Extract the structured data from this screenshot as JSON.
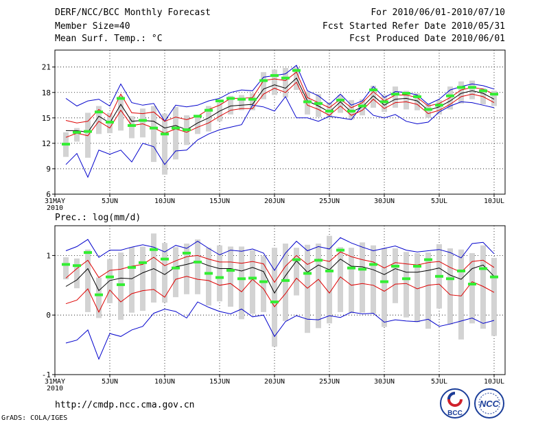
{
  "header": {
    "title": "DERF/NCC/BCC Monthly Forecast",
    "member_size": "Member Size=40",
    "variable": "Mean Surf. Temp.: °C",
    "period": "For 2010/06/01-2010/07/10",
    "started": "Fcst Started Refer Date 2010/05/31",
    "produced": "Fcst Produced Date 2010/06/01"
  },
  "footer": {
    "url": "http://cmdp.ncc.cma.gov.cn",
    "grads": "GrADS: COLA/IGES",
    "logo_bcc": "BCC",
    "logo_ncc": "NCC"
  },
  "colors": {
    "max_min": "#0000cc",
    "band": "#dd0000",
    "mean": "#000000",
    "obs": "#33ee33",
    "box": "#d3d3d3"
  },
  "x_ticks": [
    {
      "day": 0,
      "label": "31MAY",
      "sub": "2010"
    },
    {
      "day": 5,
      "label": "5JUN"
    },
    {
      "day": 10,
      "label": "10JUN"
    },
    {
      "day": 15,
      "label": "15JUN"
    },
    {
      "day": 20,
      "label": "20JUN"
    },
    {
      "day": 25,
      "label": "25JUN"
    },
    {
      "day": 30,
      "label": "30JUN"
    },
    {
      "day": 35,
      "label": "5JUL"
    },
    {
      "day": 40,
      "label": "10JUL"
    }
  ],
  "chart_data": [
    {
      "type": "line",
      "title": "Mean Surf. Temp.: °C",
      "x": [
        1,
        2,
        3,
        4,
        5,
        6,
        7,
        8,
        9,
        10,
        11,
        12,
        13,
        14,
        15,
        16,
        17,
        18,
        19,
        20,
        21,
        22,
        23,
        24,
        25,
        26,
        27,
        28,
        29,
        30,
        31,
        32,
        33,
        34,
        35,
        36,
        37,
        38,
        39,
        40
      ],
      "ylim": [
        6,
        23
      ],
      "yticks": [
        6,
        9,
        12,
        15,
        18,
        21
      ],
      "series": [
        {
          "name": "max",
          "values": [
            17.3,
            16.4,
            17.0,
            17.2,
            16.4,
            19.0,
            16.8,
            16.5,
            16.7,
            14.6,
            16.5,
            16.3,
            16.5,
            17.0,
            17.3,
            18.0,
            18.3,
            18.2,
            19.8,
            20.0,
            20.2,
            21.2,
            18.2,
            17.6,
            16.6,
            17.8,
            16.5,
            17.0,
            18.7,
            17.4,
            18.1,
            18.0,
            17.7,
            16.6,
            17.2,
            18.3,
            18.7,
            19.0,
            18.8,
            18.4
          ]
        },
        {
          "name": "upper",
          "values": [
            14.7,
            14.4,
            14.6,
            16.0,
            15.1,
            17.8,
            15.6,
            15.5,
            15.7,
            14.6,
            15.1,
            14.8,
            15.2,
            16.0,
            16.5,
            17.3,
            17.3,
            17.4,
            19.4,
            19.6,
            19.4,
            20.4,
            17.4,
            16.8,
            16.2,
            17.2,
            16.2,
            16.8,
            18.1,
            17.0,
            17.7,
            17.7,
            17.4,
            16.4,
            16.7,
            17.4,
            18.3,
            18.6,
            18.4,
            17.8
          ]
        },
        {
          "name": "mean",
          "values": [
            13.5,
            13.5,
            13.3,
            15.2,
            14.4,
            16.6,
            14.6,
            14.7,
            14.6,
            13.8,
            14.1,
            13.6,
            14.4,
            15.0,
            15.8,
            16.4,
            16.5,
            16.6,
            18.4,
            18.9,
            18.5,
            19.7,
            17.0,
            16.4,
            15.7,
            16.9,
            15.7,
            16.3,
            17.6,
            16.5,
            17.2,
            17.3,
            17.0,
            15.9,
            16.3,
            17.0,
            17.9,
            18.2,
            17.9,
            17.2
          ]
        },
        {
          "name": "lower",
          "values": [
            12.7,
            13.2,
            12.9,
            14.6,
            13.8,
            15.9,
            14.1,
            14.3,
            13.8,
            13.2,
            13.7,
            13.3,
            13.9,
            14.4,
            15.2,
            15.9,
            16.1,
            16.1,
            17.8,
            18.5,
            18.0,
            19.2,
            16.5,
            16.0,
            15.3,
            16.4,
            15.3,
            15.9,
            17.2,
            16.1,
            16.8,
            16.9,
            16.6,
            15.5,
            15.9,
            16.6,
            17.5,
            17.8,
            17.5,
            16.8
          ]
        },
        {
          "name": "min",
          "values": [
            9.5,
            10.8,
            8.0,
            11.2,
            10.7,
            11.2,
            9.8,
            12.0,
            11.6,
            9.5,
            11.1,
            11.2,
            12.4,
            13.1,
            13.6,
            13.9,
            14.2,
            16.5,
            16.3,
            15.8,
            17.5,
            15.0,
            15.0,
            14.6,
            15.2,
            15.0,
            14.8,
            16.5,
            15.3,
            15.0,
            15.4,
            14.6,
            14.3,
            14.5,
            15.7,
            16.4,
            16.9,
            16.8,
            16.5,
            16.2
          ]
        },
        {
          "name": "obs",
          "values": [
            11.9,
            13.3,
            13.4,
            15.7,
            14.5,
            17.3,
            14.1,
            14.7,
            13.8,
            13.1,
            13.8,
            13.6,
            15.2,
            15.9,
            17.0,
            17.3,
            17.2,
            17.2,
            19.4,
            20.0,
            19.7,
            20.6,
            16.9,
            16.7,
            15.8,
            17.1,
            15.8,
            16.4,
            18.3,
            16.9,
            17.8,
            17.9,
            17.5,
            16.0,
            16.5,
            17.6,
            18.6,
            18.6,
            18.2,
            17.8
          ]
        },
        {
          "name": "box_hi",
          "values": [
            13.3,
            13.8,
            15.6,
            16.4,
            15.6,
            17.6,
            15.2,
            16.1,
            16.4,
            15.5,
            16.3,
            15.3,
            15.2,
            16.4,
            16.8,
            17.6,
            17.7,
            17.9,
            20.4,
            20.7,
            20.9,
            21.0,
            18.1,
            17.8,
            16.8,
            17.7,
            17.1,
            17.2,
            18.8,
            17.7,
            18.7,
            18.2,
            17.9,
            16.6,
            17.1,
            18.7,
            19.3,
            19.4,
            18.5,
            18.2
          ]
        },
        {
          "name": "box_lo",
          "values": [
            10.4,
            12.2,
            10.3,
            13.1,
            13.2,
            13.5,
            12.6,
            12.7,
            9.8,
            8.3,
            10.1,
            11.8,
            13.1,
            13.4,
            14.6,
            15.4,
            15.9,
            15.9,
            17.2,
            17.7,
            17.4,
            18.3,
            15.4,
            15.1,
            15.0,
            15.6,
            14.8,
            15.3,
            16.2,
            15.7,
            16.2,
            16.0,
            15.9,
            15.0,
            15.4,
            16.0,
            16.7,
            17.2,
            16.6,
            16.4
          ]
        }
      ]
    },
    {
      "type": "line",
      "title": "Prec.: log(mm/d)",
      "x": [
        1,
        2,
        3,
        4,
        5,
        6,
        7,
        8,
        9,
        10,
        11,
        12,
        13,
        14,
        15,
        16,
        17,
        18,
        19,
        20,
        21,
        22,
        23,
        24,
        25,
        26,
        27,
        28,
        29,
        30,
        31,
        32,
        33,
        34,
        35,
        36,
        37,
        38,
        39,
        40
      ],
      "ylim": [
        -1,
        1.5
      ],
      "yticks": [
        -1,
        0,
        1
      ],
      "series": [
        {
          "name": "max",
          "values": [
            1.08,
            1.15,
            1.27,
            0.97,
            1.09,
            1.09,
            1.14,
            1.18,
            1.14,
            1.06,
            1.17,
            1.12,
            1.24,
            1.12,
            1.01,
            1.09,
            1.07,
            1.11,
            1.04,
            0.75,
            1.04,
            1.24,
            1.08,
            1.15,
            1.11,
            1.3,
            1.21,
            1.14,
            1.08,
            1.12,
            1.16,
            1.09,
            1.06,
            1.08,
            1.1,
            1.05,
            0.96,
            1.2,
            1.22,
            1.03
          ]
        },
        {
          "name": "upper",
          "values": [
            0.62,
            0.78,
            0.92,
            0.63,
            0.75,
            0.77,
            0.82,
            0.85,
            0.97,
            0.83,
            0.91,
            0.98,
            1.0,
            0.94,
            0.89,
            0.89,
            0.87,
            0.9,
            0.86,
            0.55,
            0.82,
            1.0,
            0.85,
            0.94,
            0.9,
            1.06,
            0.98,
            0.93,
            0.89,
            0.79,
            0.88,
            0.86,
            0.84,
            0.88,
            0.9,
            0.8,
            0.72,
            0.9,
            0.92,
            0.8
          ]
        },
        {
          "name": "mean",
          "values": [
            0.48,
            0.59,
            0.78,
            0.41,
            0.58,
            0.62,
            0.61,
            0.71,
            0.78,
            0.68,
            0.81,
            0.85,
            0.9,
            0.83,
            0.78,
            0.78,
            0.74,
            0.8,
            0.73,
            0.37,
            0.66,
            0.91,
            0.72,
            0.84,
            0.76,
            0.94,
            0.82,
            0.81,
            0.76,
            0.68,
            0.78,
            0.72,
            0.72,
            0.75,
            0.79,
            0.67,
            0.6,
            0.78,
            0.84,
            0.65
          ]
        },
        {
          "name": "lower",
          "values": [
            0.19,
            0.25,
            0.44,
            0.05,
            0.42,
            0.22,
            0.36,
            0.41,
            0.43,
            0.3,
            0.6,
            0.65,
            0.6,
            0.58,
            0.5,
            0.53,
            0.39,
            0.6,
            0.44,
            0.14,
            0.36,
            0.62,
            0.45,
            0.6,
            0.37,
            0.64,
            0.5,
            0.53,
            0.5,
            0.4,
            0.52,
            0.53,
            0.44,
            0.5,
            0.52,
            0.34,
            0.32,
            0.56,
            0.48,
            0.38
          ]
        },
        {
          "name": "min",
          "values": [
            -0.47,
            -0.42,
            -0.25,
            -0.74,
            -0.31,
            -0.36,
            -0.25,
            -0.19,
            0.03,
            0.1,
            0.06,
            -0.05,
            0.22,
            0.13,
            0.06,
            0.02,
            0.1,
            -0.03,
            0.0,
            -0.36,
            -0.11,
            -0.01,
            -0.07,
            -0.08,
            -0.01,
            -0.04,
            0.05,
            0.02,
            0.03,
            -0.12,
            -0.08,
            -0.1,
            -0.11,
            -0.07,
            -0.19,
            -0.15,
            -0.1,
            -0.05,
            -0.14,
            -0.09
          ]
        },
        {
          "name": "obs",
          "values": [
            0.85,
            0.83,
            1.05,
            0.34,
            0.64,
            0.51,
            0.8,
            0.88,
            1.1,
            0.94,
            0.79,
            1.04,
            0.89,
            0.7,
            0.63,
            0.75,
            0.61,
            0.62,
            0.56,
            0.22,
            0.58,
            0.93,
            0.7,
            0.92,
            0.74,
            1.09,
            0.79,
            0.77,
            0.85,
            0.56,
            0.82,
            0.61,
            0.82,
            0.93,
            0.65,
            0.61,
            0.74,
            0.52,
            0.78,
            0.64
          ]
        },
        {
          "name": "box_hi",
          "values": [
            0.97,
            0.95,
            1.1,
            0.63,
            0.94,
            1.05,
            1.14,
            1.15,
            1.37,
            1.21,
            1.14,
            1.2,
            1.27,
            1.13,
            1.17,
            1.15,
            1.15,
            1.09,
            0.99,
            1.13,
            1.2,
            1.13,
            1.18,
            1.2,
            1.33,
            1.14,
            1.13,
            1.22,
            1.17,
            1.12,
            1.12,
            1.06,
            1.04,
            1.05,
            1.19,
            1.12,
            1.1,
            1.04,
            1.17,
            0.96
          ]
        },
        {
          "name": "box_lo",
          "values": [
            0.6,
            0.45,
            0.05,
            -0.05,
            0.2,
            -0.08,
            0.04,
            0.07,
            0.21,
            0.21,
            0.3,
            0.35,
            0.35,
            0.16,
            0.23,
            0.14,
            -0.07,
            0.02,
            0.05,
            -0.53,
            -0.1,
            0.33,
            -0.3,
            -0.22,
            -0.14,
            0.05,
            0.03,
            0.04,
            0.02,
            -0.2,
            0.2,
            -0.04,
            -0.12,
            -0.23,
            0.11,
            -0.16,
            -0.41,
            -0.14,
            -0.23,
            -0.35
          ]
        }
      ]
    }
  ],
  "prec_label": "Prec.: log(mm/d)"
}
